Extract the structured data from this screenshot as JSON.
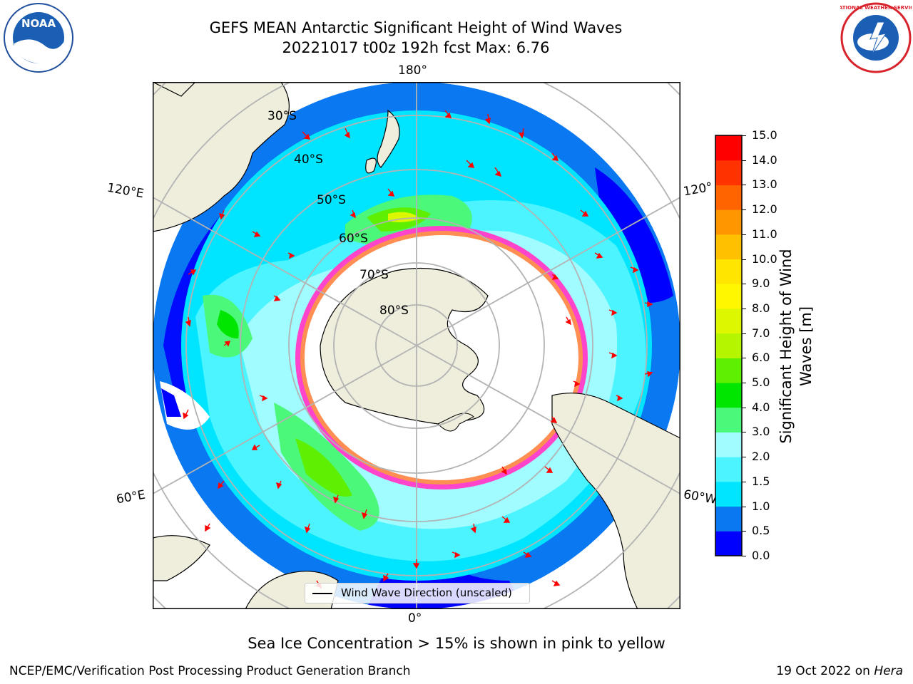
{
  "header": {
    "title_line1": "GEFS MEAN Antarctic Significant Height of Wind Waves",
    "title_line2": "20221017 t00z 192h fcst   Max: 6.76"
  },
  "map": {
    "projection": "south-polar-stereographic",
    "longitude_labels": {
      "top": "180°",
      "bottom": "0°",
      "upper_left": "120°E",
      "lower_left": "60°E",
      "upper_right": "120°",
      "lower_right": "60°W"
    },
    "latitude_labels": [
      "30°S",
      "40°S",
      "50°S",
      "60°S",
      "70°S",
      "80°S"
    ],
    "land_color": "#efeddb",
    "ice_color": "#ff44cc"
  },
  "legend": {
    "label": "Wind Wave Direction (unscaled)"
  },
  "colorbar": {
    "title_line1": "Significant Height of Wind",
    "title_line2": "Waves [m]",
    "ticks": [
      "0.0",
      "0.5",
      "1.0",
      "1.5",
      "2.0",
      "3.0",
      "4.0",
      "5.0",
      "6.0",
      "7.0",
      "8.0",
      "9.0",
      "10.0",
      "11.0",
      "12.0",
      "13.0",
      "14.0",
      "15.0"
    ],
    "colors": [
      "#0000ff",
      "#0a78f0",
      "#00e5ff",
      "#4cf4ff",
      "#a0fcff",
      "#4cf87a",
      "#00e600",
      "#5ef000",
      "#b6f500",
      "#ddf700",
      "#fff700",
      "#ffe500",
      "#ffc000",
      "#ff9600",
      "#ff6400",
      "#ff3200",
      "#ff0000"
    ]
  },
  "subtitle": "Sea Ice Concentration > 15% is shown in pink to yellow",
  "footer": {
    "left": "NCEP/EMC/Verification Post Processing Product Generation Branch",
    "date": "19 Oct 2022 on",
    "host": "Hera"
  },
  "logos": {
    "left": "NOAA",
    "right": "NATIONAL WEATHER SERVICE"
  }
}
